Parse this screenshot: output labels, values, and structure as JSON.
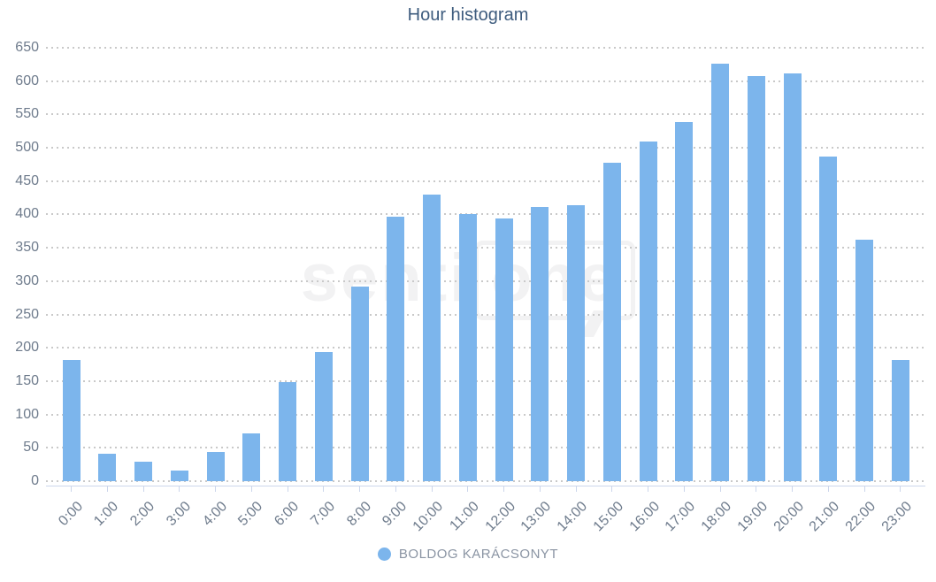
{
  "title": "Hour histogram",
  "watermark": {
    "part1": "senti",
    "part2": "one"
  },
  "legend": {
    "label": "BOLDOG KARÁCSONYT"
  },
  "colors": {
    "bar": "#7cb5ec",
    "title": "#3e5c7e",
    "axis_label": "#6e7b8c",
    "legend_text": "#8a94a3",
    "axis_line": "#ccd6eb",
    "grid_dot": "#c9c9c9",
    "watermark": "#f2f2f3"
  },
  "chart_data": {
    "type": "bar",
    "title": "Hour histogram",
    "categories": [
      "0:00",
      "1:00",
      "2:00",
      "3:00",
      "4:00",
      "5:00",
      "6:00",
      "7:00",
      "8:00",
      "9:00",
      "10:00",
      "11:00",
      "12:00",
      "13:00",
      "14:00",
      "15:00",
      "16:00",
      "17:00",
      "18:00",
      "19:00",
      "20:00",
      "21:00",
      "22:00",
      "23:00"
    ],
    "series": [
      {
        "name": "BOLDOG KARÁCSONYT",
        "color": "#7cb5ec",
        "values": [
          182,
          41,
          29,
          16,
          44,
          72,
          149,
          194,
          292,
          396,
          430,
          401,
          394,
          411,
          414,
          477,
          510,
          539,
          626,
          608,
          611,
          487,
          362,
          182
        ]
      }
    ],
    "xlabel": "",
    "ylabel": "",
    "ylim": [
      0,
      650
    ],
    "ytick_interval": 50,
    "yticks": [
      0,
      50,
      100,
      150,
      200,
      250,
      300,
      350,
      400,
      450,
      500,
      550,
      600,
      650
    ],
    "grid": "horizontal-dotted",
    "legend_position": "bottom-center",
    "x_label_rotation": -45
  }
}
